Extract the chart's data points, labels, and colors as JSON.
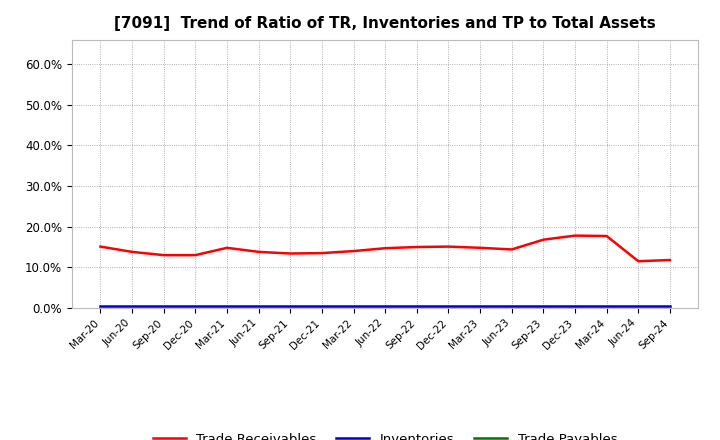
{
  "title": "[7091]  Trend of Ratio of TR, Inventories and TP to Total Assets",
  "x_labels": [
    "Mar-20",
    "Jun-20",
    "Sep-20",
    "Dec-20",
    "Mar-21",
    "Jun-21",
    "Sep-21",
    "Dec-21",
    "Mar-22",
    "Jun-22",
    "Sep-22",
    "Dec-22",
    "Mar-23",
    "Jun-23",
    "Sep-23",
    "Dec-23",
    "Mar-24",
    "Jun-24",
    "Sep-24"
  ],
  "trade_receivables": [
    0.151,
    0.138,
    0.13,
    0.13,
    0.148,
    0.138,
    0.134,
    0.135,
    0.14,
    0.147,
    0.15,
    0.151,
    0.148,
    0.144,
    0.168,
    0.178,
    0.177,
    0.115,
    0.118
  ],
  "inventories": [
    0.005,
    0.005,
    0.005,
    0.005,
    0.005,
    0.005,
    0.005,
    0.005,
    0.005,
    0.005,
    0.005,
    0.005,
    0.005,
    0.005,
    0.005,
    0.005,
    0.005,
    0.005,
    0.005
  ],
  "trade_payables": [
    0.001,
    0.001,
    0.001,
    0.001,
    0.001,
    0.001,
    0.001,
    0.001,
    0.001,
    0.001,
    0.001,
    0.001,
    0.001,
    0.001,
    0.001,
    0.001,
    0.001,
    0.001,
    0.001
  ],
  "line_colors": {
    "trade_receivables": "#ff0000",
    "inventories": "#0000cc",
    "trade_payables": "#007700"
  },
  "line_width": 1.8,
  "ylim": [
    0.0,
    0.66
  ],
  "yticks": [
    0.0,
    0.1,
    0.2,
    0.3,
    0.4,
    0.5,
    0.6
  ],
  "ytick_labels": [
    "0.0%",
    "10.0%",
    "20.0%",
    "30.0%",
    "40.0%",
    "50.0%",
    "60.0%"
  ],
  "background_color": "#ffffff",
  "plot_bg_color": "#ffffff",
  "grid_color": "#999999",
  "title_fontsize": 11,
  "legend_labels": [
    "Trade Receivables",
    "Inventories",
    "Trade Payables"
  ]
}
